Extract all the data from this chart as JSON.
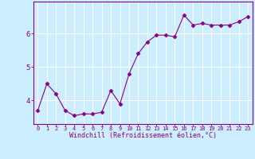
{
  "x": [
    0,
    1,
    2,
    3,
    4,
    5,
    6,
    7,
    8,
    9,
    10,
    11,
    12,
    13,
    14,
    15,
    16,
    17,
    18,
    19,
    20,
    21,
    22,
    23
  ],
  "y": [
    3.7,
    4.5,
    4.2,
    3.7,
    3.55,
    3.6,
    3.6,
    3.65,
    4.3,
    3.9,
    4.8,
    5.4,
    5.75,
    5.95,
    5.95,
    5.9,
    6.55,
    6.25,
    6.3,
    6.25,
    6.25,
    6.25,
    6.35,
    6.5
  ],
  "line_color": "#880088",
  "marker": "D",
  "marker_size": 2.5,
  "bg_color": "#cceeff",
  "grid_color": "#ffffff",
  "xlabel": "Windchill (Refroidissement éolien,°C)",
  "tick_color": "#880088",
  "ylim": [
    3.3,
    6.95
  ],
  "yticks": [
    4,
    5,
    6
  ],
  "xlim": [
    -0.5,
    23.5
  ],
  "xticks": [
    0,
    1,
    2,
    3,
    4,
    5,
    6,
    7,
    8,
    9,
    10,
    11,
    12,
    13,
    14,
    15,
    16,
    17,
    18,
    19,
    20,
    21,
    22,
    23
  ],
  "spine_color": "#880088",
  "tick_fontsize": 5.0,
  "xlabel_fontsize": 6.0,
  "ytick_fontsize": 6.5
}
